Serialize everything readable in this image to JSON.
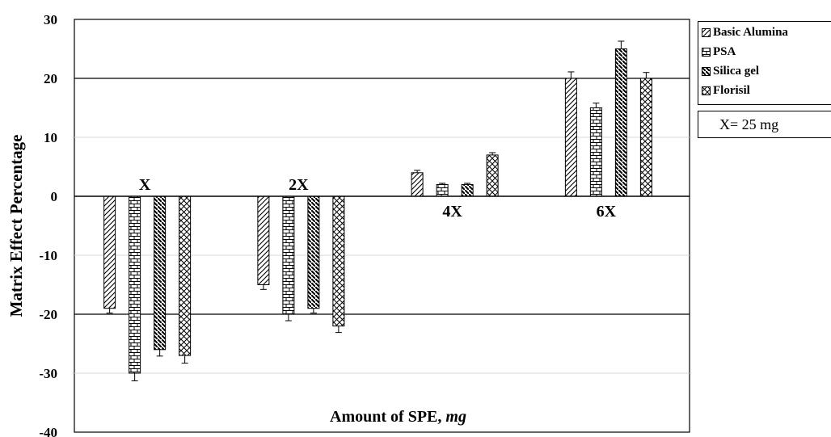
{
  "chart_data": {
    "type": "bar",
    "title": "",
    "ylabel": "Matrix Effect Percentage",
    "xlabel_main": "Amount of SPE, ",
    "xlabel_unit": "mg",
    "ylim": [
      -40,
      30
    ],
    "yticks": [
      -40,
      -30,
      -20,
      -10,
      0,
      10,
      20,
      30
    ],
    "major_gridlines": [
      -20,
      20
    ],
    "minor_gridlines": [
      -30,
      -10,
      10
    ],
    "categories": [
      "X",
      "2X",
      "4X",
      "6X"
    ],
    "series": [
      {
        "name": "Basic Alumina",
        "pattern": "diag-up",
        "values": [
          -19,
          -15,
          4,
          20
        ],
        "errors": [
          0.8,
          0.8,
          0.4,
          1.1
        ]
      },
      {
        "name": "PSA",
        "pattern": "brick",
        "values": [
          -30,
          -20,
          2,
          15
        ],
        "errors": [
          1.3,
          1.1,
          0.2,
          0.8
        ]
      },
      {
        "name": "Silica gel",
        "pattern": "diag-down",
        "values": [
          -26,
          -19,
          2,
          25
        ],
        "errors": [
          1.1,
          0.8,
          0.2,
          1.3
        ]
      },
      {
        "name": "Florisil",
        "pattern": "cross",
        "values": [
          -27,
          -22,
          7,
          20
        ],
        "errors": [
          1.3,
          1.1,
          0.4,
          1.0
        ]
      }
    ],
    "legend_position": "right",
    "note": "X= 25 mg",
    "colors": {
      "bar_fill": "#ffffff",
      "stroke": "#000000",
      "gridline": "#d9d9d9"
    }
  }
}
